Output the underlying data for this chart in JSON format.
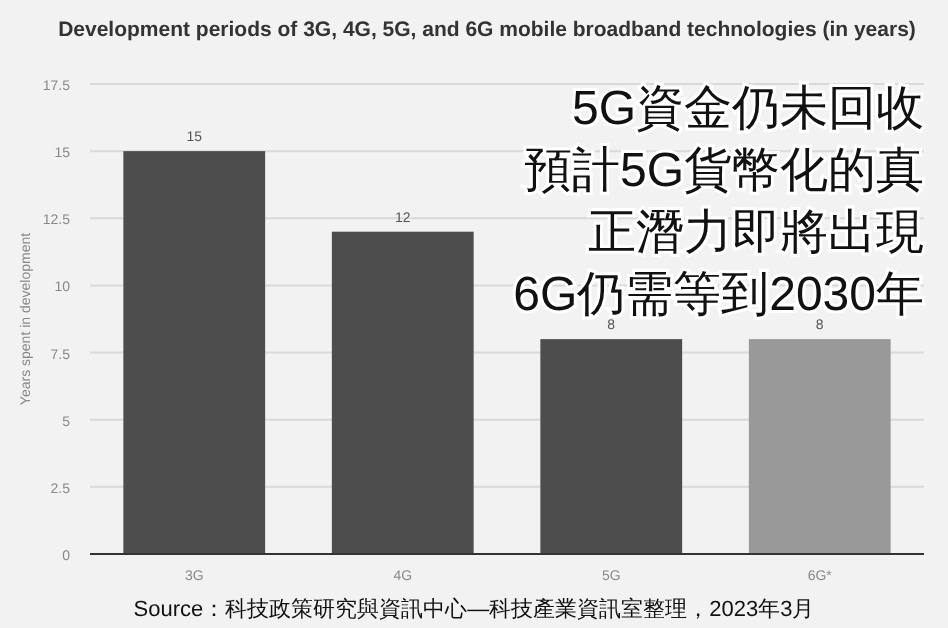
{
  "chart_data": {
    "type": "bar",
    "title": "Development periods of 3G, 4G, 5G, and 6G mobile broadband technologies (in years)",
    "ylabel": "Years spent in development",
    "categories": [
      "3G",
      "4G",
      "5G",
      "6G*"
    ],
    "values": [
      15,
      12,
      8,
      8
    ],
    "colors": [
      "#4d4d4d",
      "#4d4d4d",
      "#4d4d4d",
      "#999999"
    ],
    "ylim": [
      0,
      17.5
    ],
    "yticks": [
      0,
      2.5,
      5,
      7.5,
      10,
      12.5,
      15,
      17.5
    ],
    "grid": "y",
    "data_labels": true,
    "annotations": [
      "5G資金仍未回收",
      "預計5G貨幣化的真",
      "正潛力即將出現",
      "6G仍需等到2030年",
      "Source：科技政策研究與資訊中心—科技產業資訊室整理，2023年3月"
    ]
  }
}
